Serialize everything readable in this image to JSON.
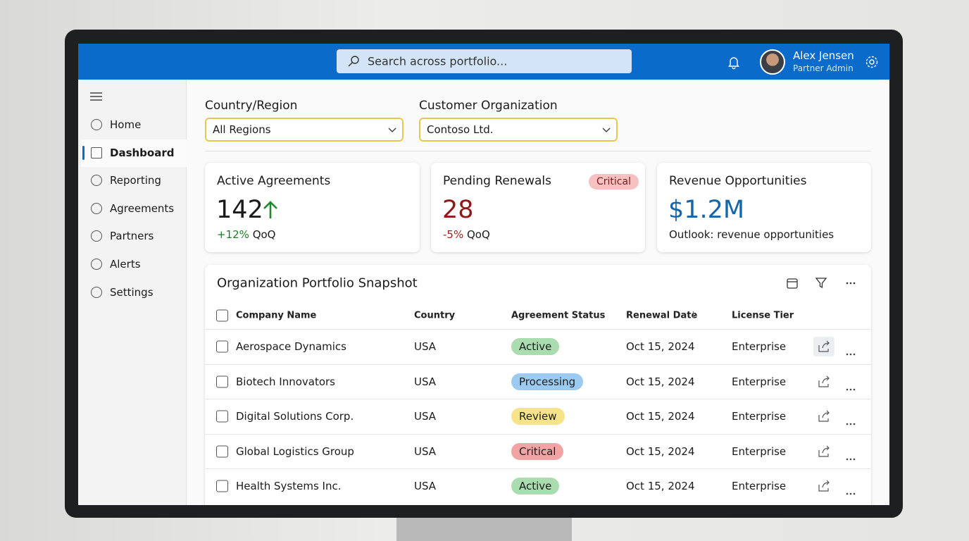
{
  "header": {
    "search_placeholder": "Search across portfolio...",
    "user_name": "Alex Jensen",
    "user_role": "Partner Admin"
  },
  "nav": {
    "items": [
      "Home",
      "Dashboard",
      "Reporting",
      "Agreements",
      "Partners",
      "Alerts",
      "Settings"
    ]
  },
  "filters": [
    {
      "label": "Country/Region",
      "value": "All Regions"
    },
    {
      "label": "Customer Organization",
      "value": "Contoso Ltd."
    }
  ],
  "kpis": [
    {
      "title": "Active Agreements",
      "value": 142,
      "change": "+12%",
      "period": "QoQ"
    },
    {
      "title": "Pending Renewals",
      "badge": "Critical",
      "value": 28,
      "change": "-5%",
      "period": "QoQ"
    },
    {
      "title": "Revenue Opportunities",
      "value": "$1.2M",
      "note": "Outlook: revenue opportunities"
    }
  ],
  "table": {
    "title": "Organization Portfolio Snapshot",
    "columns": [
      "Company Name",
      "Country",
      "Agreement Status",
      "Renewal Date",
      "License Tier"
    ],
    "status_colors": {
      "Active": "#a9dcae",
      "Processing": "#9ccbf2",
      "Review": "#f7e48a",
      "Critical": "#f2a3a3"
    },
    "rows": [
      [
        "Aerospace Dynamics",
        "USA",
        "Active",
        "Oct 15, 2024",
        "Enterprise"
      ],
      [
        "Biotech Innovators",
        "USA",
        "Processing",
        "Oct 15, 2024",
        "Enterprise"
      ],
      [
        "Digital Solutions Corp.",
        "USA",
        "Review",
        "Oct 15, 2024",
        "Enterprise"
      ],
      [
        "Global Logistics Group",
        "USA",
        "Critical",
        "Oct 15, 2024",
        "Enterprise"
      ],
      [
        "Health Systems Inc.",
        "USA",
        "Active",
        "Oct 15, 2024",
        "Enterprise"
      ]
    ]
  }
}
